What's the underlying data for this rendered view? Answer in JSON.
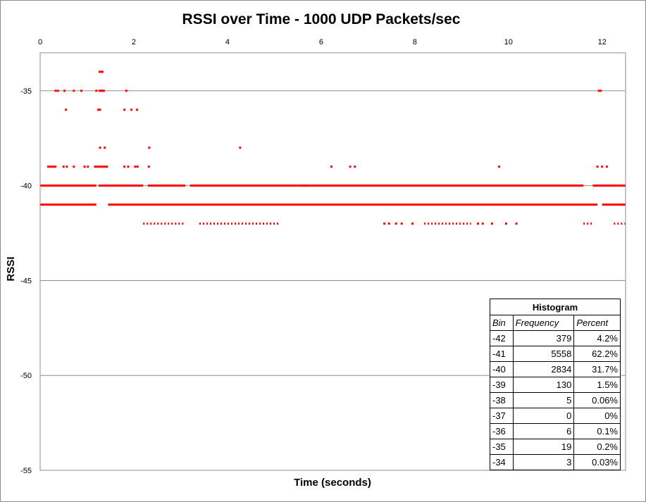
{
  "chart_data": {
    "type": "scatter",
    "title": "RSSI over Time - 1000 UDP Packets/sec",
    "xlabel": "Time (seconds)",
    "ylabel": "RSSI",
    "xlim": [
      0,
      12.5
    ],
    "ylim": [
      -55,
      -33
    ],
    "x_ticks": [
      0,
      2,
      4,
      6,
      8,
      10,
      12
    ],
    "y_ticks": [
      -35,
      -40,
      -45,
      -50,
      -55
    ],
    "grid": "horizontal",
    "x_axis_position": "top",
    "series_color": "#ff0000",
    "bands": [
      {
        "y": -40,
        "segments": [
          [
            0,
            1.2
          ],
          [
            1.25,
            2.2
          ],
          [
            2.3,
            3.1
          ],
          [
            3.2,
            5.7
          ],
          [
            5.6,
            11.6
          ],
          [
            11.8,
            12.5
          ]
        ],
        "density": "dense"
      },
      {
        "y": -41,
        "segments": [
          [
            0,
            1.2
          ],
          [
            1.45,
            11.9
          ],
          [
            12.0,
            12.5
          ]
        ],
        "density": "dense"
      },
      {
        "y": -42,
        "segments": [
          [
            2.2,
            3.1
          ],
          [
            3.4,
            5.1
          ],
          [
            8.2,
            9.2
          ],
          [
            11.6,
            11.8
          ],
          [
            12.25,
            12.5
          ]
        ],
        "density": "sparse"
      },
      {
        "y": -39,
        "segments": [
          [
            0.15,
            0.35
          ],
          [
            1.15,
            1.45
          ]
        ],
        "density": "dense"
      }
    ],
    "points": [
      {
        "x": 1.27,
        "y": -34
      },
      {
        "x": 1.31,
        "y": -34
      },
      {
        "x": 1.33,
        "y": -34
      },
      {
        "x": 0.33,
        "y": -35
      },
      {
        "x": 0.38,
        "y": -35
      },
      {
        "x": 0.52,
        "y": -35
      },
      {
        "x": 0.72,
        "y": -35
      },
      {
        "x": 0.88,
        "y": -35
      },
      {
        "x": 1.2,
        "y": -35
      },
      {
        "x": 1.27,
        "y": -35
      },
      {
        "x": 1.3,
        "y": -35
      },
      {
        "x": 1.33,
        "y": -35
      },
      {
        "x": 1.36,
        "y": -35
      },
      {
        "x": 1.84,
        "y": -35
      },
      {
        "x": 11.93,
        "y": -35
      },
      {
        "x": 11.97,
        "y": -35
      },
      {
        "x": 0.55,
        "y": -36
      },
      {
        "x": 1.24,
        "y": -36
      },
      {
        "x": 1.28,
        "y": -36
      },
      {
        "x": 1.8,
        "y": -36
      },
      {
        "x": 1.95,
        "y": -36
      },
      {
        "x": 2.07,
        "y": -36
      },
      {
        "x": 1.28,
        "y": -38
      },
      {
        "x": 1.38,
        "y": -38
      },
      {
        "x": 2.33,
        "y": -38
      },
      {
        "x": 4.27,
        "y": -38
      },
      {
        "x": 0.5,
        "y": -39
      },
      {
        "x": 0.57,
        "y": -39
      },
      {
        "x": 0.72,
        "y": -39
      },
      {
        "x": 0.95,
        "y": -39
      },
      {
        "x": 1.02,
        "y": -39
      },
      {
        "x": 1.8,
        "y": -39
      },
      {
        "x": 1.88,
        "y": -39
      },
      {
        "x": 2.03,
        "y": -39
      },
      {
        "x": 2.08,
        "y": -39
      },
      {
        "x": 2.32,
        "y": -39
      },
      {
        "x": 6.22,
        "y": -39
      },
      {
        "x": 6.62,
        "y": -39
      },
      {
        "x": 6.72,
        "y": -39
      },
      {
        "x": 9.8,
        "y": -39
      },
      {
        "x": 11.9,
        "y": -39
      },
      {
        "x": 12.0,
        "y": -39
      },
      {
        "x": 12.1,
        "y": -39
      },
      {
        "x": 7.35,
        "y": -42
      },
      {
        "x": 7.45,
        "y": -42
      },
      {
        "x": 7.6,
        "y": -42
      },
      {
        "x": 7.72,
        "y": -42
      },
      {
        "x": 7.95,
        "y": -42
      },
      {
        "x": 9.35,
        "y": -42
      },
      {
        "x": 9.45,
        "y": -42
      },
      {
        "x": 9.65,
        "y": -42
      },
      {
        "x": 9.95,
        "y": -42
      },
      {
        "x": 10.17,
        "y": -42
      }
    ],
    "histogram": {
      "title": "Histogram",
      "headers": [
        "Bin",
        "Frequency",
        "Percent"
      ],
      "rows": [
        {
          "bin": "-42",
          "frequency": "379",
          "percent": "4.2%"
        },
        {
          "bin": "-41",
          "frequency": "5558",
          "percent": "62.2%"
        },
        {
          "bin": "-40",
          "frequency": "2834",
          "percent": "31.7%"
        },
        {
          "bin": "-39",
          "frequency": "130",
          "percent": "1.5%"
        },
        {
          "bin": "-38",
          "frequency": "5",
          "percent": "0.06%"
        },
        {
          "bin": "-37",
          "frequency": "0",
          "percent": "0%"
        },
        {
          "bin": "-36",
          "frequency": "6",
          "percent": "0.1%"
        },
        {
          "bin": "-35",
          "frequency": "19",
          "percent": "0.2%"
        },
        {
          "bin": "-34",
          "frequency": "3",
          "percent": "0.03%"
        }
      ]
    }
  }
}
